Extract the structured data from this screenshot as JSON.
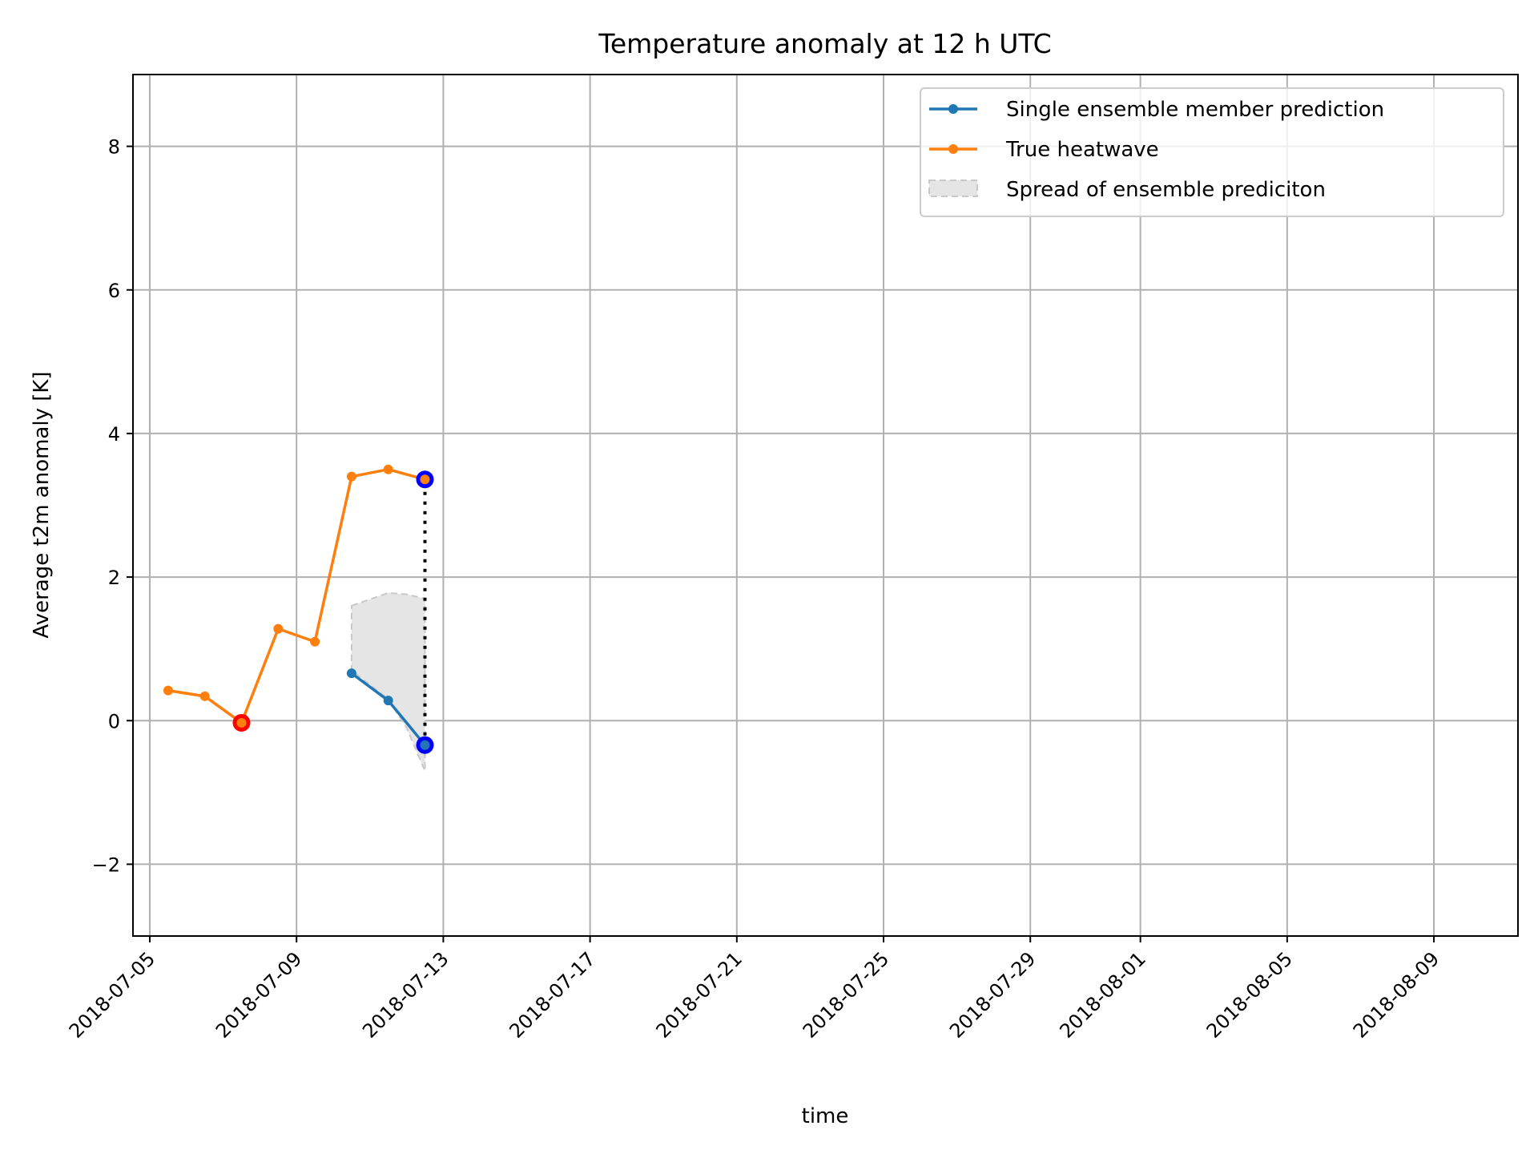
{
  "chart_data": {
    "type": "line",
    "title": "Temperature anomaly at 12 h UTC",
    "xlabel": "time",
    "ylabel": "Average t2m anomaly [K]",
    "x_axis_type": "date",
    "xlim": [
      "2018-07-04T13:00",
      "2018-08-11T07:00"
    ],
    "ylim": [
      -3,
      9
    ],
    "grid": true,
    "legend_position": "top-right",
    "x_ticks": [
      "2018-07-05",
      "2018-07-09",
      "2018-07-13",
      "2018-07-17",
      "2018-07-21",
      "2018-07-25",
      "2018-07-29",
      "2018-08-01",
      "2018-08-05",
      "2018-08-09"
    ],
    "y_ticks": [
      {
        "value": -2,
        "label": "−2"
      },
      {
        "value": 0,
        "label": "0"
      },
      {
        "value": 2,
        "label": "2"
      },
      {
        "value": 4,
        "label": "4"
      },
      {
        "value": 6,
        "label": "6"
      },
      {
        "value": 8,
        "label": "8"
      }
    ],
    "series": [
      {
        "name": "Single ensemble member prediction",
        "color": "#1f77b4",
        "points": [
          {
            "x": "2018-07-10T12:00",
            "y": 0.66
          },
          {
            "x": "2018-07-11T12:00",
            "y": 0.28
          },
          {
            "x": "2018-07-12T12:00",
            "y": -0.34
          }
        ]
      },
      {
        "name": "True heatwave",
        "color": "#ff7f0e",
        "points": [
          {
            "x": "2018-07-05T12:00",
            "y": 0.42
          },
          {
            "x": "2018-07-06T12:00",
            "y": 0.34
          },
          {
            "x": "2018-07-07T12:00",
            "y": -0.03
          },
          {
            "x": "2018-07-08T12:00",
            "y": 1.28
          },
          {
            "x": "2018-07-09T12:00",
            "y": 1.1
          },
          {
            "x": "2018-07-10T12:00",
            "y": 3.4
          },
          {
            "x": "2018-07-11T12:00",
            "y": 3.5
          },
          {
            "x": "2018-07-12T12:00",
            "y": 3.36
          }
        ]
      }
    ],
    "spread": {
      "name": "Spread of ensemble prediciton",
      "color": "#e5e5e5",
      "edge_color": "#c8c8c8",
      "points": [
        {
          "x": "2018-07-10T12:00",
          "low": 0.7,
          "high": 1.6
        },
        {
          "x": "2018-07-11T12:00",
          "low": 0.3,
          "high": 1.78
        },
        {
          "x": "2018-07-12T00:00",
          "low": -0.1,
          "high": 1.76
        },
        {
          "x": "2018-07-12T12:00",
          "low": -0.7,
          "high": 1.7
        }
      ]
    },
    "highlight_markers": [
      {
        "x": "2018-07-07T12:00",
        "y": -0.03,
        "color": "#ff0000"
      },
      {
        "x": "2018-07-12T12:00",
        "y": 3.36,
        "color": "#0000ff"
      },
      {
        "x": "2018-07-12T12:00",
        "y": -0.34,
        "color": "#0000ff"
      }
    ],
    "difference_line": {
      "x": "2018-07-12T12:00",
      "y_from": -0.34,
      "y_to": 3.36,
      "color": "#000000",
      "style": "dotted"
    }
  }
}
